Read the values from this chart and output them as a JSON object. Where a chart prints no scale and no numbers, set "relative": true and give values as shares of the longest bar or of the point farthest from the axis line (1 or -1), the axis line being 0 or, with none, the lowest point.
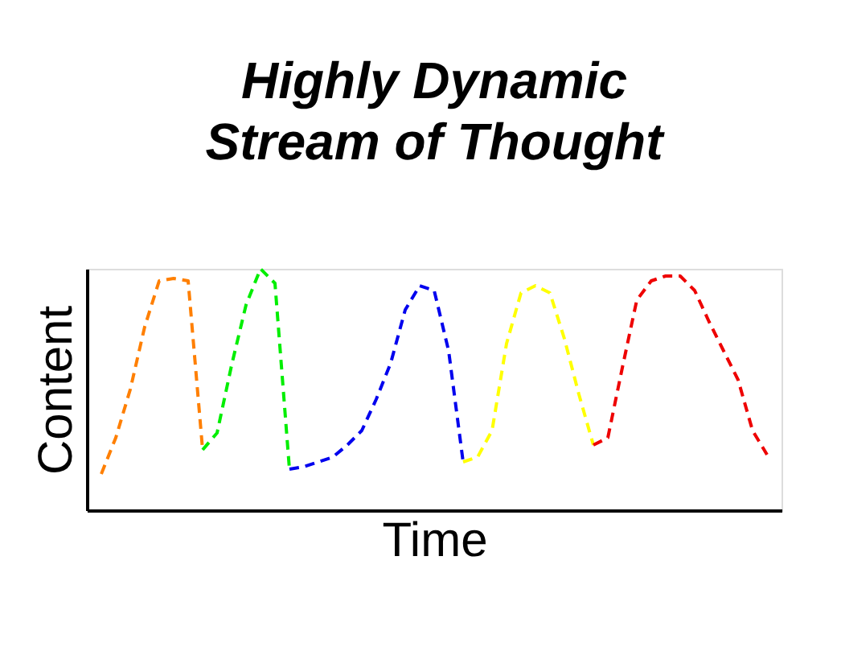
{
  "chart_data": {
    "type": "line",
    "title": "Highly Dynamic\nStream of Thought",
    "xlabel": "Time",
    "ylabel": "Content",
    "relative": true,
    "grid": false,
    "legend": false,
    "marker": "none",
    "line_style": "dashed",
    "categories": [
      null,
      null,
      null,
      null,
      null,
      null,
      null,
      null,
      null,
      null,
      null,
      null,
      null,
      null,
      null,
      null,
      null,
      null,
      null,
      null,
      null,
      null,
      null,
      null,
      null,
      null,
      null,
      null,
      null,
      null,
      null,
      null,
      null,
      null,
      null,
      null,
      null,
      null,
      null,
      null,
      null,
      null,
      null,
      null,
      null,
      null,
      null
    ],
    "series": [
      {
        "color": "#ff7f00",
        "values": [
          0.15,
          0.3,
          0.5,
          0.76,
          0.95,
          0.96,
          0.95,
          0.25,
          null,
          null,
          null,
          null,
          null,
          null,
          null,
          null,
          null,
          null,
          null,
          null,
          null,
          null,
          null,
          null,
          null,
          null,
          null,
          null,
          null,
          null,
          null,
          null,
          null,
          null,
          null,
          null,
          null,
          null,
          null,
          null,
          null,
          null,
          null,
          null,
          null,
          null,
          null
        ]
      },
      {
        "color": "#00ee00",
        "values": [
          null,
          null,
          null,
          null,
          null,
          null,
          null,
          0.25,
          0.32,
          0.6,
          0.85,
          1.0,
          0.94,
          0.17,
          null,
          null,
          null,
          null,
          null,
          null,
          null,
          null,
          null,
          null,
          null,
          null,
          null,
          null,
          null,
          null,
          null,
          null,
          null,
          null,
          null,
          null,
          null,
          null,
          null,
          null,
          null,
          null,
          null,
          null,
          null,
          null,
          null
        ]
      },
      {
        "color": "#0000ee",
        "values": [
          null,
          null,
          null,
          null,
          null,
          null,
          null,
          null,
          null,
          null,
          null,
          null,
          null,
          0.17,
          0.18,
          0.2,
          0.22,
          0.27,
          0.33,
          0.46,
          0.61,
          0.83,
          0.93,
          0.91,
          0.66,
          0.2,
          null,
          null,
          null,
          null,
          null,
          null,
          null,
          null,
          null,
          null,
          null,
          null,
          null,
          null,
          null,
          null,
          null,
          null,
          null,
          null,
          null
        ]
      },
      {
        "color": "#ffff00",
        "values": [
          null,
          null,
          null,
          null,
          null,
          null,
          null,
          null,
          null,
          null,
          null,
          null,
          null,
          null,
          null,
          null,
          null,
          null,
          null,
          null,
          null,
          null,
          null,
          null,
          null,
          0.2,
          0.22,
          0.33,
          0.69,
          0.9,
          0.93,
          0.9,
          0.71,
          0.48,
          0.27,
          null,
          null,
          null,
          null,
          null,
          null,
          null,
          null,
          null,
          null,
          null,
          null
        ]
      },
      {
        "color": "#ee0000",
        "values": [
          null,
          null,
          null,
          null,
          null,
          null,
          null,
          null,
          null,
          null,
          null,
          null,
          null,
          null,
          null,
          null,
          null,
          null,
          null,
          null,
          null,
          null,
          null,
          null,
          null,
          null,
          null,
          null,
          null,
          null,
          null,
          null,
          null,
          null,
          0.27,
          0.3,
          0.59,
          0.87,
          0.95,
          0.97,
          0.97,
          0.91,
          0.78,
          0.66,
          0.54,
          0.33,
          0.23
        ]
      }
    ]
  }
}
